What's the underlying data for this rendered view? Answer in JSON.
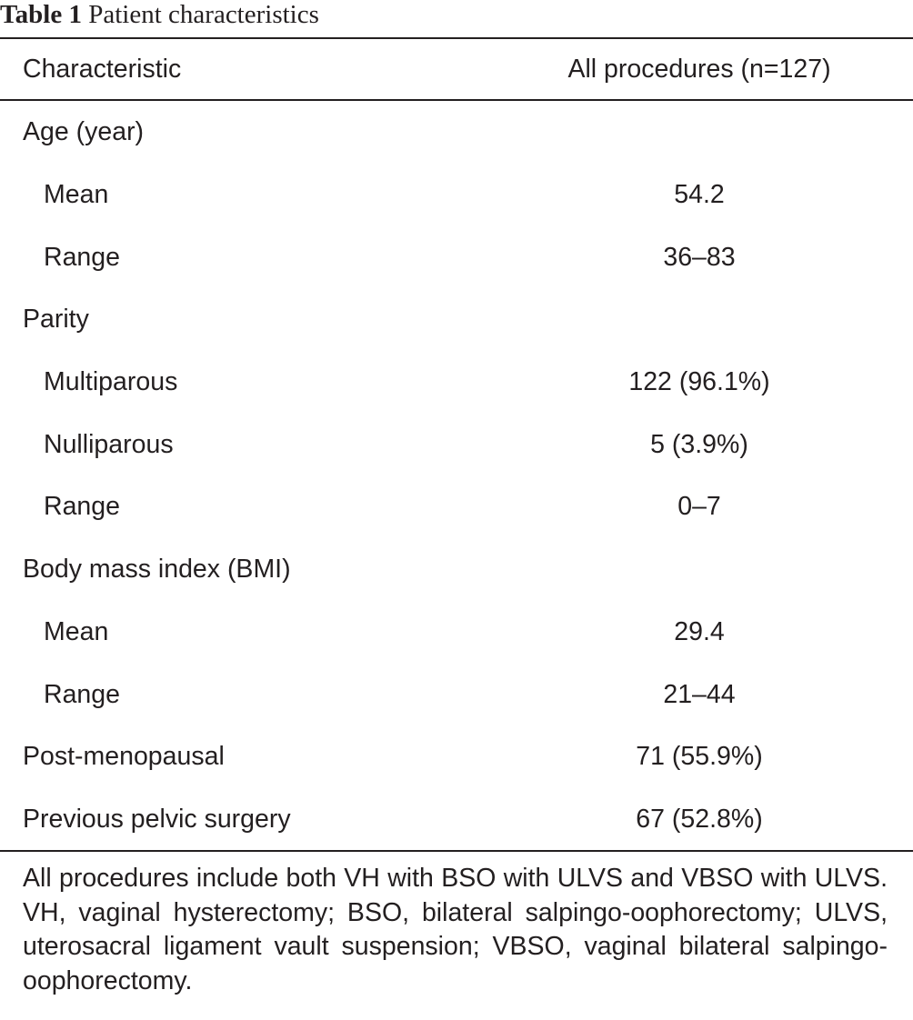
{
  "table": {
    "label": "Table 1",
    "caption": "Patient characteristics",
    "header": {
      "characteristic": "Characteristic",
      "all_procedures": "All procedures (n=127)"
    },
    "rows": [
      {
        "label": "Age (year)",
        "value": "",
        "indent": false
      },
      {
        "label": "Mean",
        "value": "54.2",
        "indent": true
      },
      {
        "label": "Range",
        "value": "36–83",
        "indent": true
      },
      {
        "label": "Parity",
        "value": "",
        "indent": false
      },
      {
        "label": "Multiparous",
        "value": "122 (96.1%)",
        "indent": true
      },
      {
        "label": "Nulliparous",
        "value": "5 (3.9%)",
        "indent": true
      },
      {
        "label": "Range",
        "value": "0–7",
        "indent": true
      },
      {
        "label": "Body mass index (BMI)",
        "value": "",
        "indent": false
      },
      {
        "label": "Mean",
        "value": "29.4",
        "indent": true
      },
      {
        "label": "Range",
        "value": "21–44",
        "indent": true
      },
      {
        "label": "Post-menopausal",
        "value": "71 (55.9%)",
        "indent": false
      },
      {
        "label": "Previous pelvic surgery",
        "value": "67 (52.8%)",
        "indent": false
      }
    ],
    "footnote": "All procedures include both VH with BSO with ULVS and VBSO with ULVS. VH, vaginal hysterectomy; BSO, bilateral salpingo-oophorectomy; ULVS, uterosacral ligament vault suspension; VBSO, vaginal bilateral salpingo-oophorectomy."
  }
}
